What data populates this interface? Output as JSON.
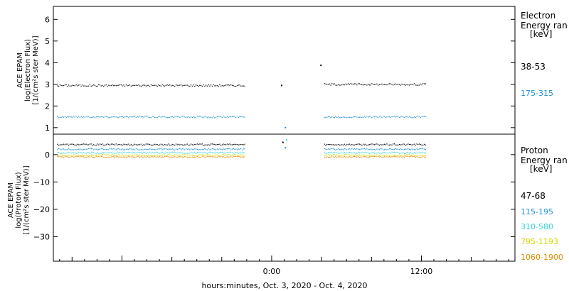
{
  "chart_data": {
    "type": "scatter",
    "xlabel": "hours:minutes, Oct.  3, 2020 - Oct.  4, 2020",
    "x_tick_labels": [
      "0:00",
      "12:00"
    ],
    "x_tick_hours": [
      0,
      12
    ],
    "x_range_hours": [
      -17.5,
      19.5
    ],
    "panels": [
      {
        "id": "electron",
        "ylabel_lines": [
          "ACE EPAM",
          "log(Electron Flux)",
          "[1/(cm²s ster MeV)]"
        ],
        "ylim": [
          0.7,
          6.6
        ],
        "yticks": [
          "1",
          "2",
          "3",
          "4",
          "5",
          "6"
        ],
        "legend_title": [
          "Electron",
          "Energy ran"
        ],
        "legend_unit": "[keV]",
        "series": [
          {
            "name": "38-53",
            "color": "#000000",
            "segments": [
              {
                "x_range": [
                  -17.2,
                  -2.2
                ],
                "y": 2.95
              },
              {
                "x_range": [
                  4.2,
                  12.3
                ],
                "y": 3.0
              }
            ],
            "points": [
              [
                0.8,
                2.95
              ],
              [
                3.95,
                3.88
              ]
            ]
          },
          {
            "name": "175-315",
            "color": "#1f8fd6",
            "segments": [
              {
                "x_range": [
                  -17.2,
                  -2.2
                ],
                "y": 1.5
              },
              {
                "x_range": [
                  4.2,
                  12.3
                ],
                "y": 1.5
              }
            ],
            "points": [
              [
                1.1,
                1.0
              ]
            ]
          }
        ]
      },
      {
        "id": "proton",
        "ylabel_lines": [
          "ACE EPAM",
          "log(Proton Flux)",
          "[1/(cm²s ster MeV)]"
        ],
        "ylim": [
          -39,
          7.5
        ],
        "yticks": [
          "0",
          "−10",
          "−20",
          "−30"
        ],
        "legend_title": [
          "Proton",
          "Energy ran"
        ],
        "legend_unit": "[keV]",
        "series": [
          {
            "name": "47-68",
            "color": "#000000",
            "segments": [
              {
                "x_range": [
                  -17.2,
                  -2.2
                ],
                "y": 3.7
              },
              {
                "x_range": [
                  4.2,
                  12.3
                ],
                "y": 3.7
              }
            ],
            "points": [
              [
                0.9,
                4.5
              ]
            ]
          },
          {
            "name": "115-195",
            "color": "#1f8fd6",
            "segments": [
              {
                "x_range": [
                  -17.2,
                  -2.2
                ],
                "y": 2.0
              },
              {
                "x_range": [
                  4.2,
                  12.3
                ],
                "y": 2.0
              }
            ],
            "points": [
              [
                1.1,
                2.5
              ]
            ]
          },
          {
            "name": "310-580",
            "color": "#33d6d6",
            "segments": [
              {
                "x_range": [
                  -17.2,
                  -2.2
                ],
                "y": 0.7
              },
              {
                "x_range": [
                  4.2,
                  12.3
                ],
                "y": 0.7
              }
            ],
            "points": [
              [
                1.2,
                5.5
              ]
            ]
          },
          {
            "name": "795-1193",
            "color": "#d6d600",
            "segments": [
              {
                "x_range": [
                  -17.2,
                  -2.2
                ],
                "y": -0.2
              },
              {
                "x_range": [
                  4.2,
                  12.3
                ],
                "y": -0.2
              }
            ],
            "points": []
          },
          {
            "name": "1060-1900",
            "color": "#e68a00",
            "segments": [
              {
                "x_range": [
                  -17.2,
                  -2.2
                ],
                "y": -0.8
              },
              {
                "x_range": [
                  4.2,
                  12.3
                ],
                "y": -0.8
              }
            ],
            "points": []
          }
        ]
      }
    ]
  }
}
